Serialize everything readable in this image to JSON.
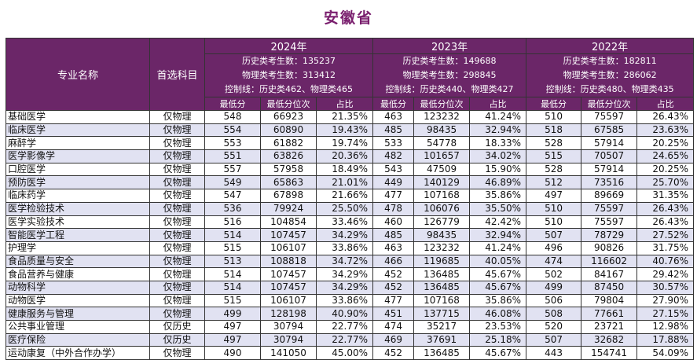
{
  "page_title": "安徽省",
  "header": {
    "major_col": "专业名称",
    "subject_col": "首选科目",
    "sub_cols": [
      "最低分",
      "最低分位次",
      "占比"
    ],
    "years": [
      {
        "year": "2024年",
        "line1": "历史类考生数：135237",
        "line2": "物理类考生数：313412",
        "line3": "控制线：历史类462、物理类465"
      },
      {
        "year": "2023年",
        "line1": "历史类考生数：149688",
        "line2": "物理类考生数：298845",
        "line3": "控制线：历史类440、物理类427"
      },
      {
        "year": "2022年",
        "line1": "历史类考生数：182811",
        "line2": "物理类考生数：286062",
        "line3": "控制线：历史类480、物理类435"
      }
    ]
  },
  "rows": [
    {
      "name": "基础医学",
      "subject": "仅物理",
      "y2024": [
        "548",
        "66923",
        "21.35%"
      ],
      "y2023": [
        "463",
        "123232",
        "41.24%"
      ],
      "y2022": [
        "510",
        "75597",
        "26.43%"
      ]
    },
    {
      "name": "临床医学",
      "subject": "仅物理",
      "y2024": [
        "554",
        "60890",
        "19.43%"
      ],
      "y2023": [
        "485",
        "98435",
        "32.94%"
      ],
      "y2022": [
        "518",
        "67585",
        "23.63%"
      ]
    },
    {
      "name": "麻醉学",
      "subject": "仅物理",
      "y2024": [
        "553",
        "61882",
        "19.74%"
      ],
      "y2023": [
        "533",
        "54778",
        "18.33%"
      ],
      "y2022": [
        "528",
        "57914",
        "20.25%"
      ]
    },
    {
      "name": "医学影像学",
      "subject": "仅物理",
      "y2024": [
        "551",
        "63826",
        "20.36%"
      ],
      "y2023": [
        "482",
        "101657",
        "34.02%"
      ],
      "y2022": [
        "515",
        "70507",
        "24.65%"
      ]
    },
    {
      "name": "口腔医学",
      "subject": "仅物理",
      "y2024": [
        "557",
        "57958",
        "18.49%"
      ],
      "y2023": [
        "543",
        "47509",
        "15.90%"
      ],
      "y2022": [
        "528",
        "57914",
        "20.25%"
      ]
    },
    {
      "name": "预防医学",
      "subject": "仅物理",
      "y2024": [
        "549",
        "65863",
        "21.01%"
      ],
      "y2023": [
        "449",
        "140129",
        "46.89%"
      ],
      "y2022": [
        "512",
        "73516",
        "25.70%"
      ]
    },
    {
      "name": "临床药学",
      "subject": "仅物理",
      "y2024": [
        "547",
        "67898",
        "21.66%"
      ],
      "y2023": [
        "477",
        "107168",
        "35.86%"
      ],
      "y2022": [
        "497",
        "89669",
        "31.35%"
      ]
    },
    {
      "name": "医学检验技术",
      "subject": "仅物理",
      "y2024": [
        "536",
        "79924",
        "25.50%"
      ],
      "y2023": [
        "478",
        "106076",
        "35.50%"
      ],
      "y2022": [
        "510",
        "75597",
        "26.43%"
      ]
    },
    {
      "name": "医学实验技术",
      "subject": "仅物理",
      "y2024": [
        "516",
        "104854",
        "33.46%"
      ],
      "y2023": [
        "460",
        "126779",
        "42.42%"
      ],
      "y2022": [
        "510",
        "75597",
        "26.43%"
      ]
    },
    {
      "name": "智能医学工程",
      "subject": "仅物理",
      "y2024": [
        "514",
        "107457",
        "34.29%"
      ],
      "y2023": [
        "485",
        "98435",
        "32.94%"
      ],
      "y2022": [
        "507",
        "78729",
        "27.52%"
      ]
    },
    {
      "name": "护理学",
      "subject": "仅物理",
      "y2024": [
        "515",
        "106107",
        "33.86%"
      ],
      "y2023": [
        "463",
        "123232",
        "41.24%"
      ],
      "y2022": [
        "496",
        "90826",
        "31.75%"
      ]
    },
    {
      "name": "食品质量与安全",
      "subject": "仅物理",
      "y2024": [
        "513",
        "108818",
        "34.72%"
      ],
      "y2023": [
        "466",
        "119685",
        "40.05%"
      ],
      "y2022": [
        "474",
        "116602",
        "40.76%"
      ]
    },
    {
      "name": "食品营养与健康",
      "subject": "仅物理",
      "y2024": [
        "514",
        "107457",
        "34.29%"
      ],
      "y2023": [
        "452",
        "136485",
        "45.67%"
      ],
      "y2022": [
        "502",
        "84167",
        "29.42%"
      ]
    },
    {
      "name": "动物科学",
      "subject": "仅物理",
      "y2024": [
        "514",
        "107457",
        "34.29%"
      ],
      "y2023": [
        "452",
        "136485",
        "45.67%"
      ],
      "y2022": [
        "499",
        "87450",
        "30.57%"
      ]
    },
    {
      "name": "动物医学",
      "subject": "仅物理",
      "y2024": [
        "515",
        "106107",
        "33.86%"
      ],
      "y2023": [
        "477",
        "107168",
        "35.86%"
      ],
      "y2022": [
        "506",
        "79804",
        "27.90%"
      ]
    },
    {
      "name": "健康服务与管理",
      "subject": "仅物理",
      "y2024": [
        "499",
        "128198",
        "40.90%"
      ],
      "y2023": [
        "451",
        "137715",
        "46.08%"
      ],
      "y2022": [
        "508",
        "77661",
        "27.15%"
      ]
    },
    {
      "name": "公共事业管理",
      "subject": "仅历史",
      "y2024": [
        "497",
        "30794",
        "22.77%"
      ],
      "y2023": [
        "474",
        "35217",
        "23.53%"
      ],
      "y2022": [
        "520",
        "23721",
        "12.98%"
      ]
    },
    {
      "name": "医疗保险",
      "subject": "仅历史",
      "y2024": [
        "497",
        "30794",
        "22.77%"
      ],
      "y2023": [
        "469",
        "37691",
        "25.18%"
      ],
      "y2022": [
        "507",
        "32682",
        "17.88%"
      ]
    },
    {
      "name": "运动康复（中外合作办学）",
      "subject": "仅物理",
      "y2024": [
        "490",
        "141050",
        "45.00%"
      ],
      "y2023": [
        "452",
        "136485",
        "45.67%"
      ],
      "y2022": [
        "443",
        "154741",
        "54.09%"
      ]
    }
  ]
}
